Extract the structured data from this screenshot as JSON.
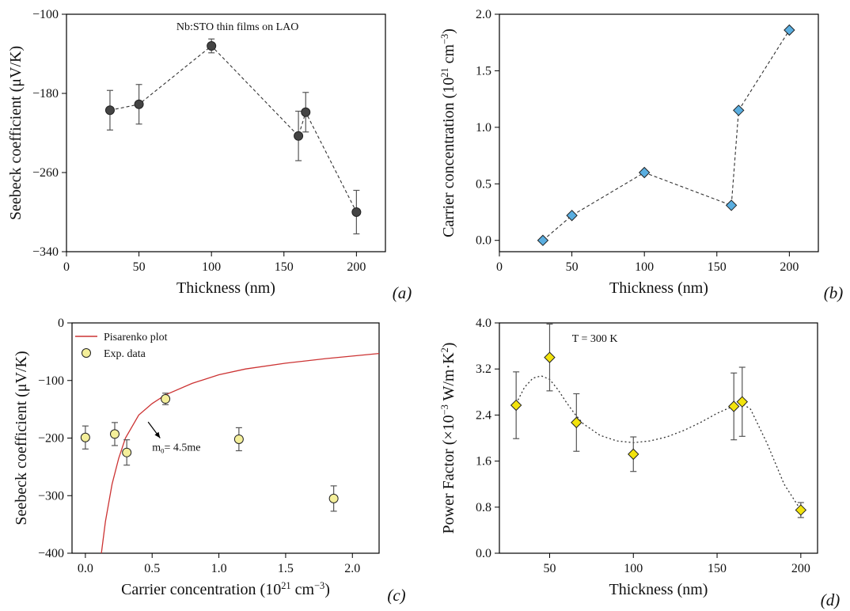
{
  "chart_data": [
    {
      "id": "a",
      "type": "scatter",
      "panel_label": "(a)",
      "title": "Nb:STO thin films on LAO",
      "xlabel": "Thickness (nm)",
      "ylabel": "Seebeck coefficient (μV/K)",
      "xlim": [
        0,
        220
      ],
      "ylim": [
        -340,
        -100
      ],
      "xticks": [
        0,
        50,
        100,
        150,
        200
      ],
      "yticks": [
        -100,
        -180,
        -260,
        -340
      ],
      "grid": false,
      "marker": "circle",
      "marker_color": "#444444",
      "connect": "dashed",
      "series": [
        {
          "x": [
            30,
            50,
            100,
            160,
            165,
            200
          ],
          "y": [
            -197,
            -191,
            -132,
            -223,
            -199,
            -300
          ],
          "err": [
            20,
            20,
            7,
            25,
            20,
            22
          ]
        }
      ]
    },
    {
      "id": "b",
      "type": "scatter",
      "panel_label": "(b)",
      "xlabel": "Thickness (nm)",
      "ylabel_parts": [
        "Carrier concentration (10",
        "21",
        " cm",
        "−3",
        ")"
      ],
      "xlim": [
        0,
        220
      ],
      "ylim": [
        -0.1,
        2.0
      ],
      "xticks": [
        0,
        50,
        100,
        150,
        200
      ],
      "yticks": [
        0.0,
        0.5,
        1.0,
        1.5,
        2.0
      ],
      "ytick_labels": [
        "0.0",
        "0.5",
        "1.0",
        "1.5",
        "2.0"
      ],
      "grid": false,
      "marker": "diamond",
      "marker_color": "#5aaee0",
      "connect": "dashed",
      "series": [
        {
          "x": [
            30,
            50,
            100,
            160,
            165,
            200
          ],
          "y": [
            0.0,
            0.22,
            0.6,
            0.31,
            1.15,
            1.86
          ]
        }
      ]
    },
    {
      "id": "c",
      "type": "scatter",
      "panel_label": "(c)",
      "xlabel_parts": [
        "Carrier concentration (10",
        "21",
        " cm",
        "−3",
        ")"
      ],
      "ylabel": "Seebeck coefficient (μV/K)",
      "xlim": [
        -0.1,
        2.2
      ],
      "ylim": [
        -400,
        0
      ],
      "xticks": [
        0.0,
        0.5,
        1.0,
        1.5,
        2.0
      ],
      "xtick_labels": [
        "0.0",
        "0.5",
        "1.0",
        "1.5",
        "2.0"
      ],
      "yticks": [
        0,
        -100,
        -200,
        -300,
        -400
      ],
      "grid": false,
      "legend": [
        "Pisarenko plot",
        "Exp. data"
      ],
      "legend_position": "top-left",
      "annotation_parts": [
        "m",
        "0",
        "= 4.5me"
      ],
      "series": [
        {
          "name": "Exp. data",
          "marker": "circle",
          "marker_color": "#f4ef9a",
          "x": [
            0.0,
            0.22,
            0.31,
            0.6,
            1.15,
            1.86
          ],
          "y": [
            -199,
            -193,
            -225,
            -132,
            -202,
            -305
          ],
          "err": [
            20,
            20,
            22,
            10,
            20,
            22
          ]
        }
      ],
      "curve": {
        "name": "Pisarenko plot",
        "color": "#cc3333",
        "x": [
          0.12,
          0.15,
          0.2,
          0.25,
          0.3,
          0.4,
          0.5,
          0.6,
          0.8,
          1.0,
          1.2,
          1.5,
          1.8,
          2.2
        ],
        "y": [
          -400,
          -345,
          -280,
          -235,
          -200,
          -160,
          -140,
          -125,
          -105,
          -90,
          -80,
          -70,
          -62,
          -53
        ]
      }
    },
    {
      "id": "d",
      "type": "scatter",
      "panel_label": "(d)",
      "title": "T = 300 K",
      "xlabel": "Thickness (nm)",
      "ylabel_parts": [
        "Power Factor (×10",
        "−3",
        " W/m·K",
        "2",
        ")"
      ],
      "xlim": [
        20,
        210
      ],
      "ylim": [
        0.0,
        4.0
      ],
      "xticks": [
        50,
        100,
        150,
        200
      ],
      "yticks": [
        0.0,
        0.8,
        1.6,
        2.4,
        3.2,
        4.0
      ],
      "ytick_labels": [
        "0.0",
        "0.8",
        "1.6",
        "2.4",
        "3.2",
        "4.0"
      ],
      "grid": false,
      "marker": "diamond",
      "marker_color": "#f2e30c",
      "series": [
        {
          "x": [
            30,
            50,
            66,
            100,
            160,
            165,
            200
          ],
          "y": [
            2.57,
            3.4,
            2.27,
            1.72,
            2.55,
            2.63,
            0.75
          ],
          "err": [
            0.58,
            0.58,
            0.5,
            0.3,
            0.58,
            0.6,
            0.13
          ]
        }
      ],
      "fit_curve": {
        "style": "dotted",
        "color": "#333333",
        "x": [
          30,
          35,
          40,
          45,
          50,
          55,
          60,
          65,
          70,
          80,
          90,
          100,
          110,
          120,
          130,
          140,
          150,
          160,
          165,
          170,
          180,
          190,
          200
        ],
        "y": [
          2.6,
          2.88,
          3.04,
          3.08,
          3.02,
          2.84,
          2.62,
          2.42,
          2.25,
          2.05,
          1.95,
          1.92,
          1.95,
          2.02,
          2.13,
          2.27,
          2.43,
          2.56,
          2.6,
          2.5,
          1.9,
          1.2,
          0.75
        ]
      }
    }
  ]
}
